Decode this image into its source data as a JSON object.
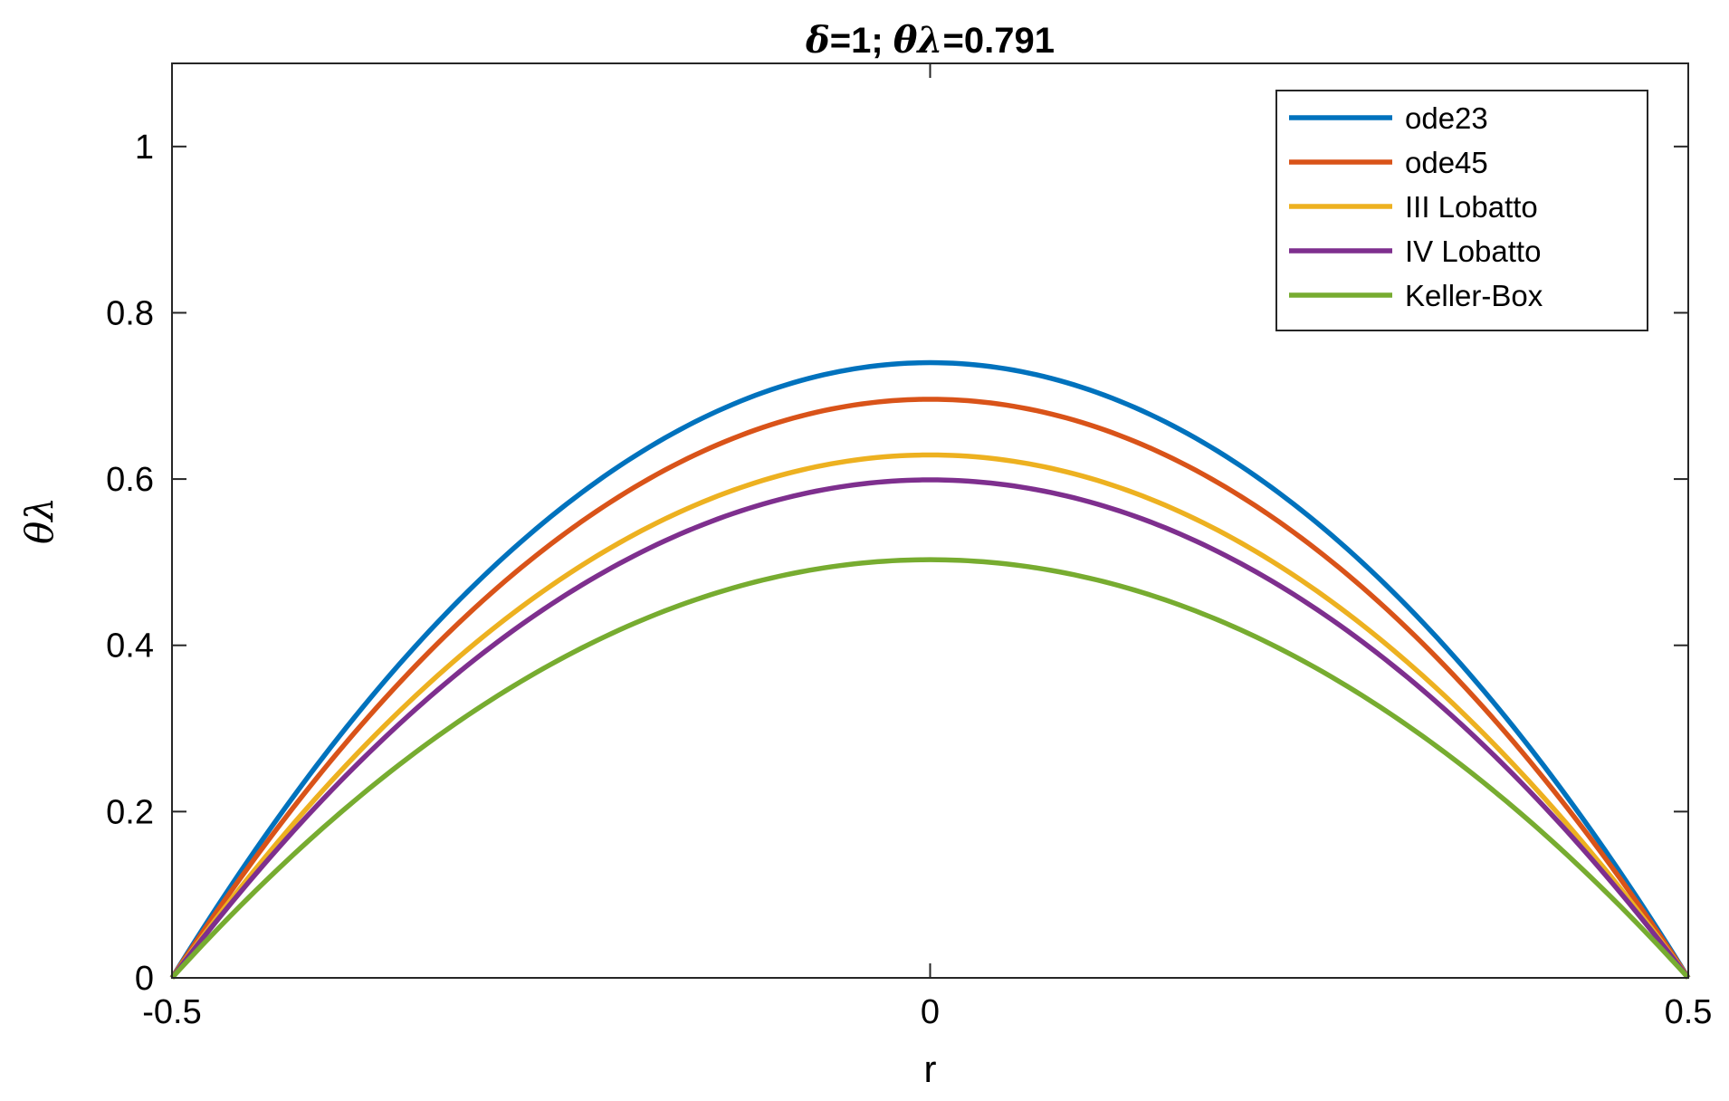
{
  "chart_data": {
    "type": "line",
    "title_parts": [
      {
        "text": "δ",
        "symbol": true
      },
      {
        "text": "=1;    ",
        "symbol": false
      },
      {
        "text": "θλ",
        "symbol": true
      },
      {
        "text": "=0.791",
        "symbol": false
      }
    ],
    "xlabel": "r",
    "ylabel": "θλ",
    "xlim": [
      -0.5,
      0.5
    ],
    "ylim": [
      0,
      1.1
    ],
    "xticks": [
      -0.5,
      0,
      0.5
    ],
    "xtick_labels": [
      "-0.5",
      "0",
      "0.5"
    ],
    "yticks": [
      0,
      0.2,
      0.4,
      0.6,
      0.8,
      1
    ],
    "ytick_labels": [
      "0",
      "0.2",
      "0.4",
      "0.6",
      "0.8",
      "1"
    ],
    "grid": false,
    "legend_position": "top-right",
    "series": [
      {
        "name": "ode23",
        "color": "#0072BD",
        "shape": "parabola",
        "x_range": [
          -0.5,
          0.5
        ],
        "peak_x": 0,
        "peak_y": 0.74,
        "end_y": 0
      },
      {
        "name": "ode45",
        "color": "#D95319",
        "shape": "parabola",
        "x_range": [
          -0.5,
          0.5
        ],
        "peak_x": 0,
        "peak_y": 0.696,
        "end_y": 0
      },
      {
        "name": "III Lobatto",
        "color": "#EDB120",
        "shape": "parabola",
        "x_range": [
          -0.5,
          0.5
        ],
        "peak_x": 0,
        "peak_y": 0.629,
        "end_y": 0
      },
      {
        "name": "IV Lobatto",
        "color": "#7E2F8E",
        "shape": "parabola",
        "x_range": [
          -0.5,
          0.5
        ],
        "peak_x": 0,
        "peak_y": 0.599,
        "end_y": 0
      },
      {
        "name": "Keller-Box",
        "color": "#77AC30",
        "shape": "parabola",
        "x_range": [
          -0.5,
          0.5
        ],
        "peak_x": 0,
        "peak_y": 0.503,
        "end_y": 0
      }
    ]
  }
}
